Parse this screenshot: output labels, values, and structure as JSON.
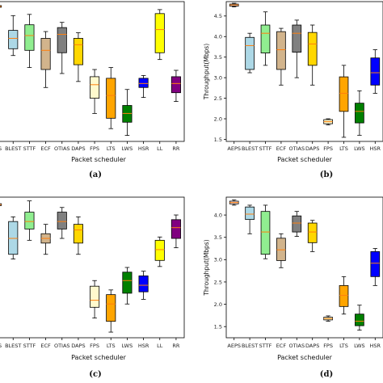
{
  "chart_data": [
    {
      "panel_label": "(a)",
      "type": "box",
      "xlabel": "Packet scheduler",
      "ylabel": "",
      "ylim": [
        1.4,
        4.9
      ],
      "yticks": [],
      "categories": [
        "EAFEPS",
        "BLEST",
        "STTF",
        "ECF",
        "OTIAS",
        "DAPS",
        "FPS",
        "LTS",
        "LWS",
        "HSR",
        "LL",
        "RR"
      ],
      "tick_labels": [
        "EPS",
        "BLEST",
        "STTF",
        "ECF",
        "OTIAS",
        "DAPS",
        "FPS",
        "LTS",
        "LWS",
        "HSR",
        "LL",
        "RR"
      ],
      "colors": [
        "#ffe4e1",
        "#add8e6",
        "#90ee90",
        "#d2b48c",
        "#808080",
        "#ffd700",
        "#fffacd",
        "#ffa500",
        "#008000",
        "#0000ff",
        "#ffff00",
        "#800080"
      ],
      "boxes": [
        {
          "min": 4.74,
          "q1": 4.76,
          "median": 4.78,
          "q3": 4.8,
          "max": 4.82
        },
        {
          "min": 3.55,
          "q1": 3.72,
          "median": 3.98,
          "q3": 4.18,
          "max": 4.55
        },
        {
          "min": 3.25,
          "q1": 3.68,
          "median": 4.05,
          "q3": 4.32,
          "max": 4.58
        },
        {
          "min": 2.75,
          "q1": 3.2,
          "median": 3.68,
          "q3": 3.98,
          "max": 4.15
        },
        {
          "min": 3.1,
          "q1": 3.62,
          "median": 4.08,
          "q3": 4.25,
          "max": 4.38
        },
        {
          "min": 2.9,
          "q1": 3.32,
          "median": 3.82,
          "q3": 3.98,
          "max": 4.12
        },
        {
          "min": 2.1,
          "q1": 2.48,
          "median": 2.82,
          "q3": 3.02,
          "max": 3.2
        },
        {
          "min": 1.72,
          "q1": 1.98,
          "median": 2.55,
          "q3": 2.98,
          "max": 3.25
        },
        {
          "min": 1.55,
          "q1": 1.88,
          "median": 2.1,
          "q3": 2.3,
          "max": 2.7
        },
        {
          "min": 2.5,
          "q1": 2.75,
          "median": 2.85,
          "q3": 2.98,
          "max": 3.05
        },
        {
          "min": 3.45,
          "q1": 3.62,
          "median": 4.2,
          "q3": 4.6,
          "max": 4.7
        },
        {
          "min": 2.4,
          "q1": 2.62,
          "median": 2.85,
          "q3": 3.02,
          "max": 3.18
        }
      ]
    },
    {
      "panel_label": "(b)",
      "type": "box",
      "xlabel": "Packet scheduler",
      "ylabel": "Throughput(Mbps)",
      "ylim": [
        1.45,
        4.85
      ],
      "yticks": [
        "1.5",
        "2.0",
        "2.5",
        "3.0",
        "3.5",
        "4.0",
        "4.5"
      ],
      "categories": [
        "AEPS",
        "BLEST",
        "STTF",
        "ECF",
        "OTIAS",
        "DAPS",
        "FPS",
        "LTS",
        "LWS",
        "HSR"
      ],
      "tick_labels": [
        "AEPS",
        "BLEST",
        "STTF",
        "ECF",
        "OTIAS",
        "DAPS",
        "FPS",
        "LTS",
        "LWS",
        "HSR"
      ],
      "colors": [
        "#ffe4e1",
        "#add8e6",
        "#90ee90",
        "#d2b48c",
        "#808080",
        "#ffd700",
        "#fffacd",
        "#ffa500",
        "#008000",
        "#0000ff"
      ],
      "boxes": [
        {
          "min": 4.72,
          "q1": 4.74,
          "median": 4.77,
          "q3": 4.79,
          "max": 4.81
        },
        {
          "min": 3.12,
          "q1": 3.2,
          "median": 3.78,
          "q3": 3.98,
          "max": 4.08
        },
        {
          "min": 3.3,
          "q1": 3.6,
          "median": 4.08,
          "q3": 4.28,
          "max": 4.6
        },
        {
          "min": 2.82,
          "q1": 3.2,
          "median": 3.68,
          "q3": 4.12,
          "max": 4.2
        },
        {
          "min": 3.0,
          "q1": 3.62,
          "median": 4.08,
          "q3": 4.28,
          "max": 4.4
        },
        {
          "min": 2.82,
          "q1": 3.3,
          "median": 3.82,
          "q3": 4.1,
          "max": 4.28
        },
        {
          "min": 1.85,
          "q1": 1.88,
          "median": 1.93,
          "q3": 1.98,
          "max": 2.0
        },
        {
          "min": 1.55,
          "q1": 2.18,
          "median": 2.62,
          "q3": 3.02,
          "max": 3.3
        },
        {
          "min": 1.6,
          "q1": 1.9,
          "median": 2.18,
          "q3": 2.38,
          "max": 2.68
        },
        {
          "min": 2.62,
          "q1": 2.82,
          "median": 3.12,
          "q3": 3.48,
          "max": 3.68
        }
      ]
    },
    {
      "panel_label": "(c)",
      "type": "box",
      "xlabel": "Packet scheduler",
      "ylabel": "",
      "ylim": [
        1.5,
        4.5
      ],
      "yticks": [],
      "categories": [
        "EAFEPS",
        "BLEST",
        "STTF",
        "ECF",
        "OTIAS",
        "DAPS",
        "FPS",
        "LTS",
        "LWS",
        "HSR",
        "LL",
        "RR"
      ],
      "tick_labels": [
        "EPS",
        "BLEST",
        "STTF",
        "ECF",
        "OTIAS",
        "DAPS",
        "FPS",
        "LTS",
        "LWS",
        "HSR",
        "LL",
        "RR"
      ],
      "colors": [
        "#ffe4e1",
        "#add8e6",
        "#90ee90",
        "#d2b48c",
        "#808080",
        "#ffd700",
        "#fffacd",
        "#ffa500",
        "#008000",
        "#0000ff",
        "#ffff00",
        "#800080"
      ],
      "boxes": [
        {
          "min": 4.3,
          "q1": 4.32,
          "median": 4.34,
          "q3": 4.36,
          "max": 4.38
        },
        {
          "min": 3.18,
          "q1": 3.28,
          "median": 3.62,
          "q3": 3.98,
          "max": 4.08
        },
        {
          "min": 3.58,
          "q1": 3.82,
          "median": 3.98,
          "q3": 4.18,
          "max": 4.42
        },
        {
          "min": 3.28,
          "q1": 3.52,
          "median": 3.62,
          "q3": 3.72,
          "max": 3.92
        },
        {
          "min": 3.62,
          "q1": 3.82,
          "median": 3.98,
          "q3": 4.18,
          "max": 4.28
        },
        {
          "min": 3.28,
          "q1": 3.52,
          "median": 3.8,
          "q3": 3.92,
          "max": 4.08
        },
        {
          "min": 1.92,
          "q1": 2.15,
          "median": 2.3,
          "q3": 2.6,
          "max": 2.72
        },
        {
          "min": 1.62,
          "q1": 1.85,
          "median": 2.22,
          "q3": 2.42,
          "max": 2.52
        },
        {
          "min": 2.22,
          "q1": 2.45,
          "median": 2.72,
          "q3": 2.9,
          "max": 3.0
        },
        {
          "min": 2.32,
          "q1": 2.48,
          "median": 2.62,
          "q3": 2.82,
          "max": 2.92
        },
        {
          "min": 3.02,
          "q1": 3.15,
          "median": 3.38,
          "q3": 3.58,
          "max": 3.65
        },
        {
          "min": 3.42,
          "q1": 3.62,
          "median": 3.85,
          "q3": 4.02,
          "max": 4.12
        }
      ]
    },
    {
      "panel_label": "(d)",
      "type": "box",
      "xlabel": "Packet scheduler",
      "ylabel": "Throughput(Mbps)",
      "ylim": [
        1.25,
        4.4
      ],
      "yticks": [
        "1.5",
        "2.0",
        "2.5",
        "3.0",
        "3.5",
        "4.0"
      ],
      "categories": [
        "AEPS",
        "BLEST",
        "STTF",
        "ECF",
        "OTIAS",
        "DAPS",
        "FPS",
        "LTS",
        "LWS",
        "HSR"
      ],
      "tick_labels": [
        "AEPS",
        "BLEST",
        "STTF",
        "ECF",
        "OTIAS",
        "DAPS",
        "FPS",
        "LTS",
        "LWS",
        "HSR"
      ],
      "colors": [
        "#ffe4e1",
        "#add8e6",
        "#90ee90",
        "#d2b48c",
        "#808080",
        "#ffd700",
        "#fffacd",
        "#ffa500",
        "#008000",
        "#0000ff"
      ],
      "boxes": [
        {
          "min": 4.22,
          "q1": 4.25,
          "median": 4.28,
          "q3": 4.31,
          "max": 4.34
        },
        {
          "min": 3.58,
          "q1": 3.9,
          "median": 4.02,
          "q3": 4.18,
          "max": 4.22
        },
        {
          "min": 3.02,
          "q1": 3.12,
          "median": 3.62,
          "q3": 4.08,
          "max": 4.22
        },
        {
          "min": 2.82,
          "q1": 2.98,
          "median": 3.22,
          "q3": 3.48,
          "max": 3.58
        },
        {
          "min": 3.52,
          "q1": 3.62,
          "median": 3.82,
          "q3": 3.98,
          "max": 4.08
        },
        {
          "min": 3.18,
          "q1": 3.38,
          "median": 3.62,
          "q3": 3.82,
          "max": 3.88
        },
        {
          "min": 1.62,
          "q1": 1.65,
          "median": 1.68,
          "q3": 1.71,
          "max": 1.74
        },
        {
          "min": 1.78,
          "q1": 1.95,
          "median": 2.2,
          "q3": 2.42,
          "max": 2.62
        },
        {
          "min": 1.42,
          "q1": 1.52,
          "median": 1.62,
          "q3": 1.78,
          "max": 1.98
        },
        {
          "min": 2.42,
          "q1": 2.62,
          "median": 2.92,
          "q3": 3.18,
          "max": 3.25
        }
      ]
    }
  ]
}
